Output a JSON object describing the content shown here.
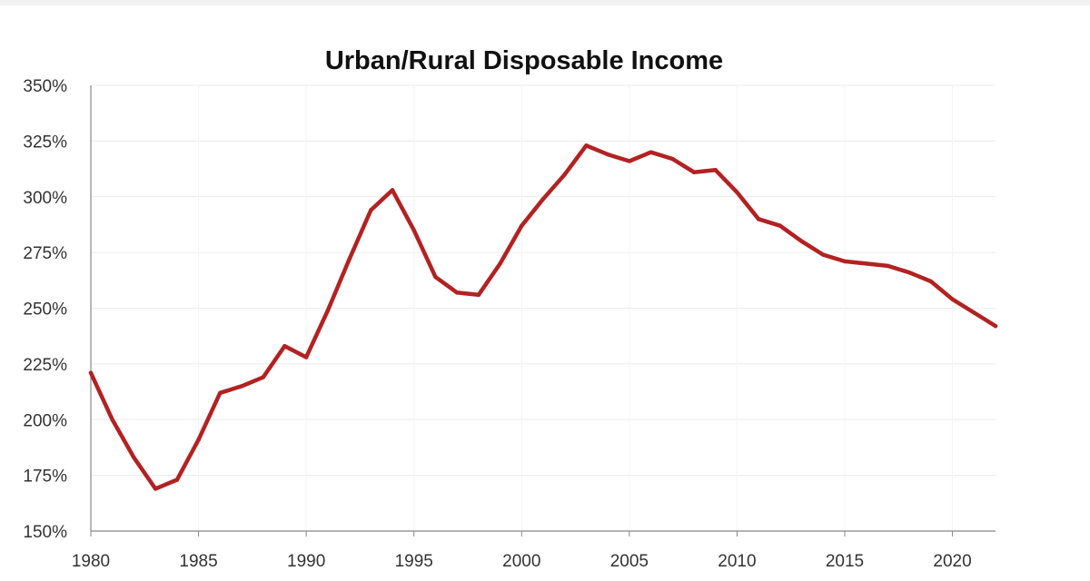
{
  "chart_data": {
    "type": "line",
    "title": "Urban/Rural Disposable Income",
    "xlabel": "",
    "ylabel": "",
    "x_ticks": [
      "1980",
      "1985",
      "1990",
      "1995",
      "2000",
      "2005",
      "2010",
      "2015",
      "2020"
    ],
    "y_ticks": [
      "150%",
      "175%",
      "200%",
      "225%",
      "250%",
      "275%",
      "300%",
      "325%",
      "350%"
    ],
    "xlim": [
      1980,
      2022
    ],
    "ylim": [
      150,
      350
    ],
    "y_unit": "%",
    "grid": "horizontal",
    "legend": "none",
    "series": [
      {
        "color": "#b22222",
        "x": [
          1980,
          1981,
          1982,
          1983,
          1984,
          1985,
          1986,
          1987,
          1988,
          1989,
          1990,
          1991,
          1992,
          1993,
          1994,
          1995,
          1996,
          1997,
          1998,
          1999,
          2000,
          2001,
          2002,
          2003,
          2004,
          2005,
          2006,
          2007,
          2008,
          2009,
          2010,
          2011,
          2012,
          2013,
          2014,
          2015,
          2016,
          2017,
          2018,
          2019,
          2020,
          2021,
          2022
        ],
        "y": [
          221,
          200,
          183,
          169,
          173,
          191,
          212,
          215,
          219,
          233,
          228,
          249,
          272,
          294,
          303,
          285,
          264,
          257,
          256,
          270,
          287,
          299,
          310,
          323,
          319,
          316,
          320,
          317,
          311,
          312,
          302,
          290,
          287,
          280,
          274,
          271,
          270,
          269,
          266,
          262,
          254,
          248,
          242
        ]
      }
    ]
  }
}
